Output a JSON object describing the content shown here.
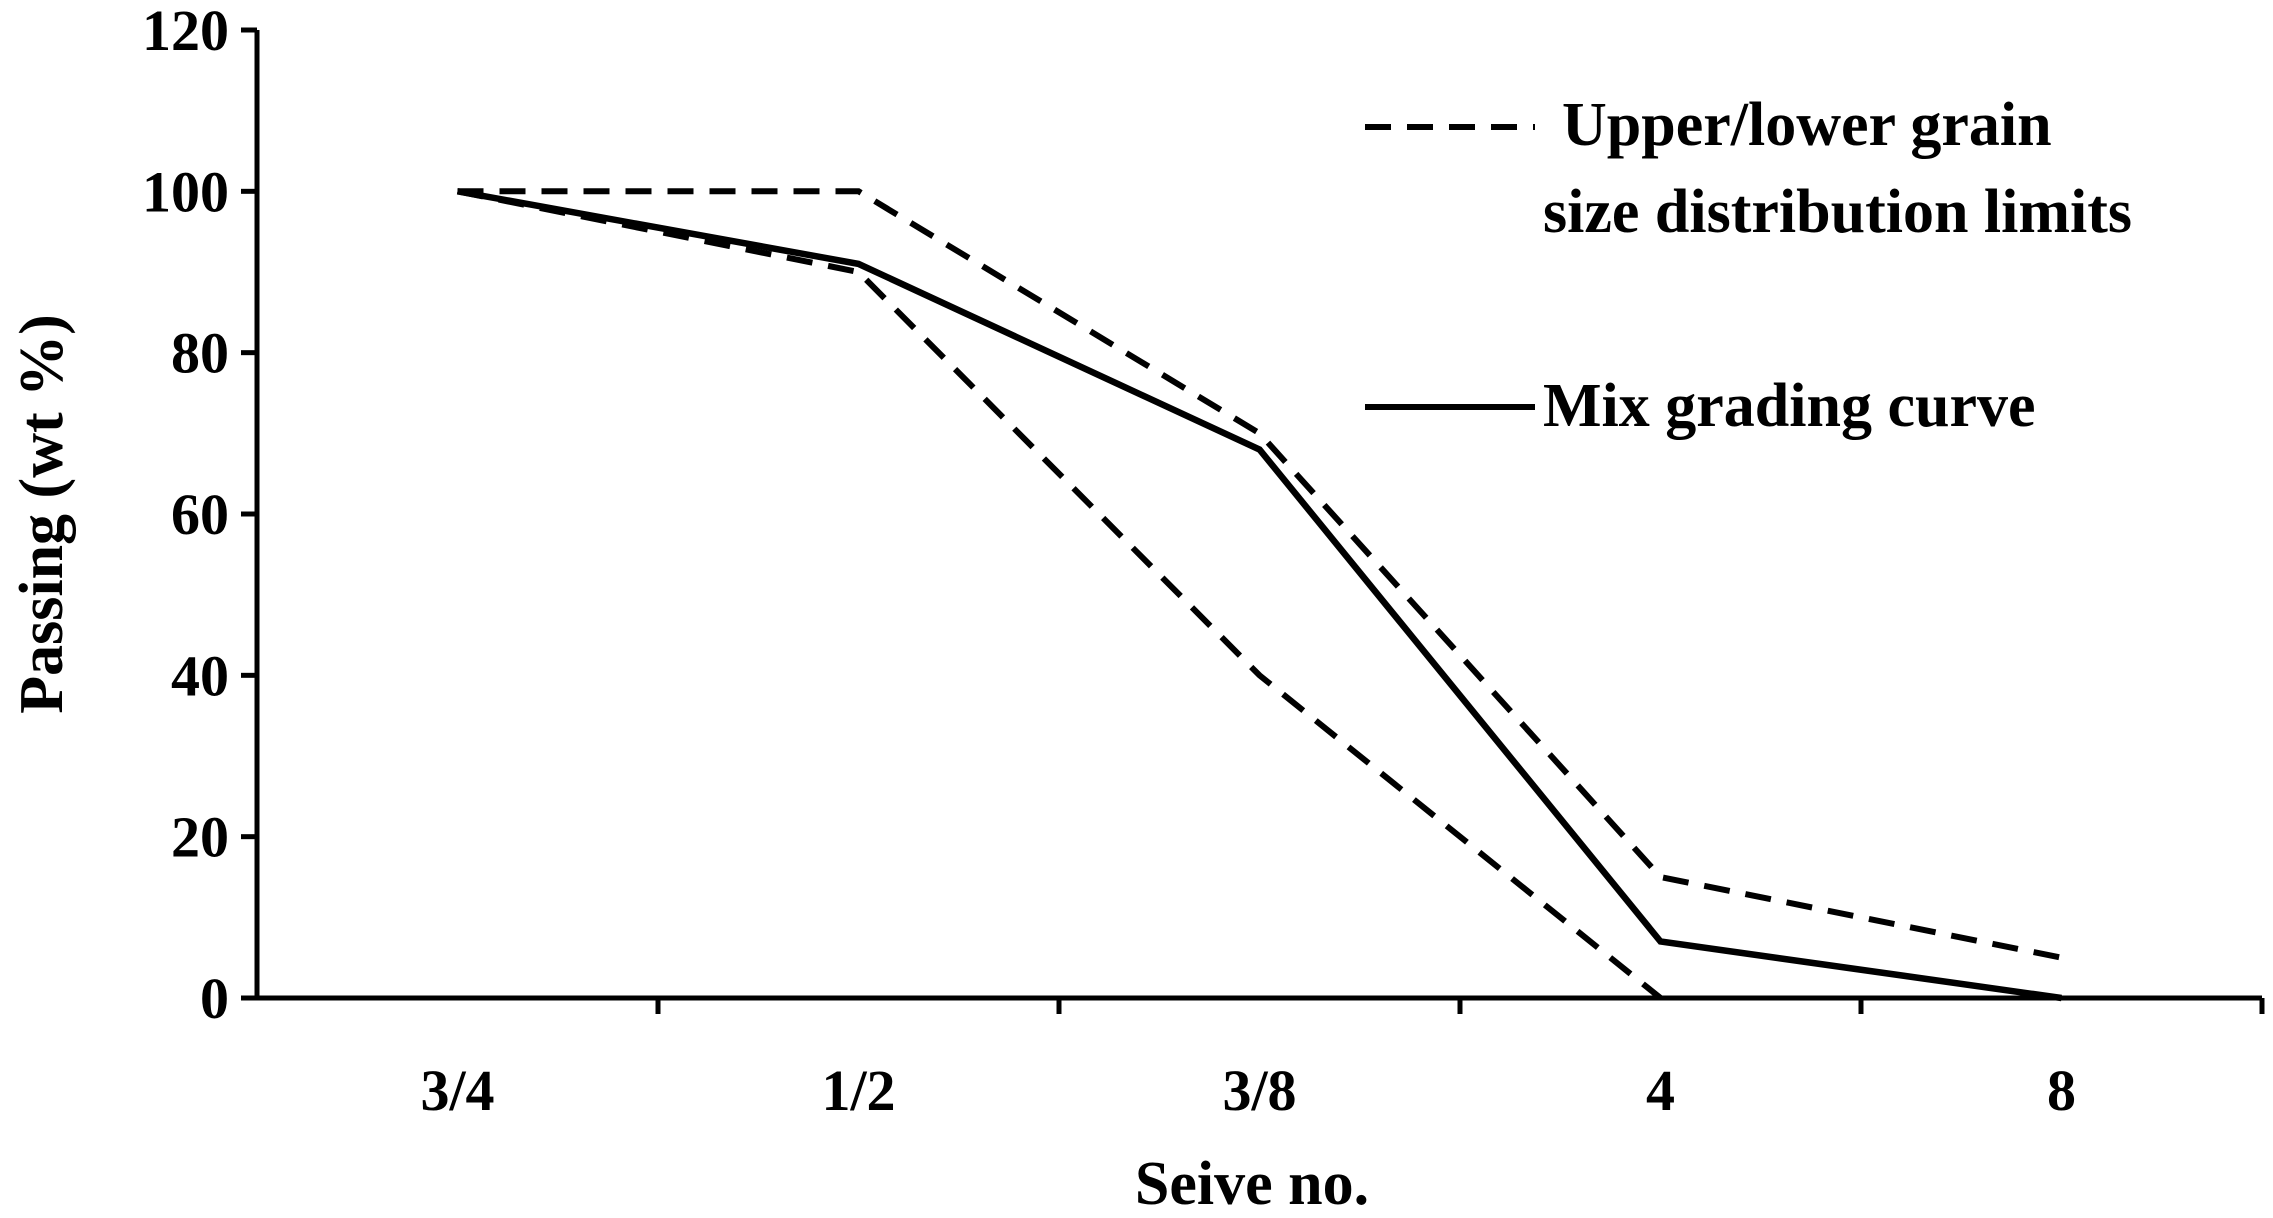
{
  "chart_data": {
    "type": "line",
    "categories": [
      "3/4",
      "1/2",
      "3/8",
      "4",
      "8"
    ],
    "xlabel": "Seive no.",
    "ylabel": "Passing (wt %)",
    "ylim": [
      0,
      120
    ],
    "yticks": [
      0,
      20,
      40,
      60,
      80,
      100,
      120
    ],
    "grid": false,
    "legend_position": "top-right",
    "series": [
      {
        "name": "Upper/lower grain size distribution limits",
        "role": "upper",
        "style": "dashed",
        "values": [
          100,
          100,
          70,
          15,
          5
        ]
      },
      {
        "name": "",
        "role": "lower",
        "style": "dashed",
        "values": [
          100,
          90,
          40,
          0,
          null
        ]
      },
      {
        "name": "Mix grading curve",
        "role": "mix",
        "style": "solid",
        "values": [
          100,
          91,
          68,
          7,
          0
        ]
      }
    ]
  },
  "legend": {
    "dashed_line1": "Upper/lower grain",
    "dashed_line2": "size distribution limits",
    "solid": "Mix grading curve"
  },
  "colors": {
    "line": "#000000",
    "background": "#ffffff"
  }
}
